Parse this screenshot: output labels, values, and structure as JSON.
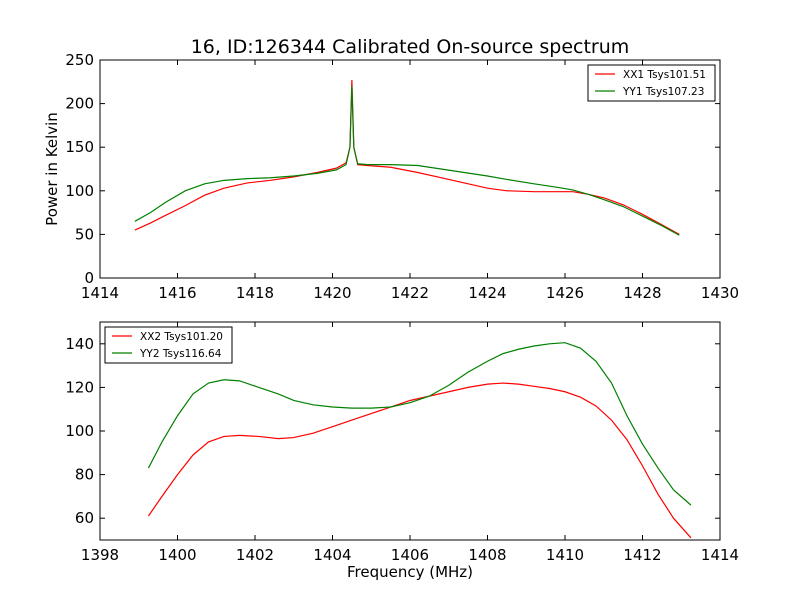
{
  "figure": {
    "title": "16, ID:126344 Calibrated On-source spectrum",
    "xlabel": "Frequency (MHz)",
    "ylabel": "Power in Kelvin"
  },
  "chart_data": [
    {
      "type": "line",
      "title": "16, ID:126344 Calibrated On-source spectrum",
      "xlabel": "",
      "ylabel": "Power in Kelvin",
      "xlim": [
        1414,
        1430
      ],
      "ylim": [
        0,
        250
      ],
      "xticks": [
        1414,
        1416,
        1418,
        1420,
        1422,
        1424,
        1426,
        1428,
        1430
      ],
      "yticks": [
        0,
        50,
        100,
        150,
        200,
        250
      ],
      "grid": false,
      "legend_position": "top-right",
      "series": [
        {
          "name": "XX1 Tsys101.51",
          "color": "#ff0000",
          "x": [
            1414.9,
            1415.3,
            1415.7,
            1416.2,
            1416.7,
            1417.2,
            1417.8,
            1418.4,
            1419.0,
            1419.6,
            1420.1,
            1420.35,
            1420.45,
            1420.5,
            1420.55,
            1420.65,
            1420.9,
            1421.5,
            1422.2,
            1422.8,
            1423.4,
            1424.0,
            1424.5,
            1425.2,
            1425.8,
            1426.2,
            1426.6,
            1427.0,
            1427.5,
            1428.0,
            1428.5,
            1428.95
          ],
          "y": [
            55,
            63,
            72,
            83,
            95,
            103,
            109,
            112,
            116,
            121,
            126,
            132,
            150,
            227,
            150,
            130,
            129,
            127,
            121,
            115,
            109,
            103,
            100,
            99,
            99,
            99,
            96,
            92,
            84,
            73,
            61,
            50
          ]
        },
        {
          "name": "YY1 Tsys107.23",
          "color": "#008000",
          "x": [
            1414.9,
            1415.3,
            1415.7,
            1416.2,
            1416.7,
            1417.2,
            1417.8,
            1418.4,
            1419.0,
            1419.6,
            1420.1,
            1420.35,
            1420.45,
            1420.5,
            1420.55,
            1420.65,
            1420.9,
            1421.5,
            1422.2,
            1422.8,
            1423.4,
            1424.0,
            1424.5,
            1425.2,
            1425.8,
            1426.2,
            1426.6,
            1427.0,
            1427.5,
            1428.0,
            1428.5,
            1428.95
          ],
          "y": [
            65,
            75,
            87,
            100,
            108,
            112,
            114,
            115,
            117,
            120,
            124,
            130,
            150,
            220,
            150,
            131,
            130,
            130,
            129,
            125,
            121,
            117,
            113,
            108,
            104,
            101,
            96,
            90,
            82,
            71,
            60,
            49
          ]
        }
      ]
    },
    {
      "type": "line",
      "title": "",
      "xlabel": "Frequency (MHz)",
      "ylabel": "",
      "xlim": [
        1398,
        1414
      ],
      "ylim": [
        50,
        150
      ],
      "xticks": [
        1398,
        1400,
        1402,
        1404,
        1406,
        1408,
        1410,
        1412,
        1414
      ],
      "yticks": [
        60,
        80,
        100,
        120,
        140
      ],
      "grid": false,
      "legend_position": "top-left",
      "series": [
        {
          "name": "XX2 Tsys101.20",
          "color": "#ff0000",
          "x": [
            1399.25,
            1399.6,
            1400.0,
            1400.4,
            1400.8,
            1401.2,
            1401.6,
            1402.1,
            1402.6,
            1403.0,
            1403.5,
            1404.0,
            1404.5,
            1405.0,
            1405.5,
            1406.0,
            1406.5,
            1407.0,
            1407.5,
            1408.0,
            1408.4,
            1408.8,
            1409.2,
            1409.6,
            1410.0,
            1410.4,
            1410.8,
            1411.2,
            1411.6,
            1412.0,
            1412.4,
            1412.8,
            1413.25
          ],
          "y": [
            61,
            70,
            80,
            89,
            95,
            97.5,
            98,
            97.5,
            96.5,
            97,
            99,
            102,
            105,
            108,
            111,
            114,
            116,
            118,
            120,
            121.5,
            122,
            121.5,
            120.5,
            119.5,
            118,
            115.5,
            111.5,
            105,
            96,
            84,
            71,
            60,
            51
          ]
        },
        {
          "name": "YY2 Tsys116.64",
          "color": "#008000",
          "x": [
            1399.25,
            1399.6,
            1400.0,
            1400.4,
            1400.8,
            1401.2,
            1401.6,
            1402.1,
            1402.6,
            1403.0,
            1403.5,
            1404.0,
            1404.5,
            1405.0,
            1405.5,
            1406.0,
            1406.5,
            1407.0,
            1407.5,
            1408.0,
            1408.4,
            1408.8,
            1409.2,
            1409.6,
            1410.0,
            1410.4,
            1410.8,
            1411.2,
            1411.6,
            1412.0,
            1412.4,
            1412.8,
            1413.25
          ],
          "y": [
            83,
            95,
            107,
            117,
            122,
            123.5,
            123,
            120,
            117,
            114,
            112,
            111,
            110.5,
            110.5,
            111,
            113,
            116,
            121,
            127,
            132,
            135.5,
            137.5,
            139,
            140,
            140.5,
            138,
            132,
            122,
            107,
            94,
            83,
            73,
            66
          ]
        }
      ]
    }
  ]
}
